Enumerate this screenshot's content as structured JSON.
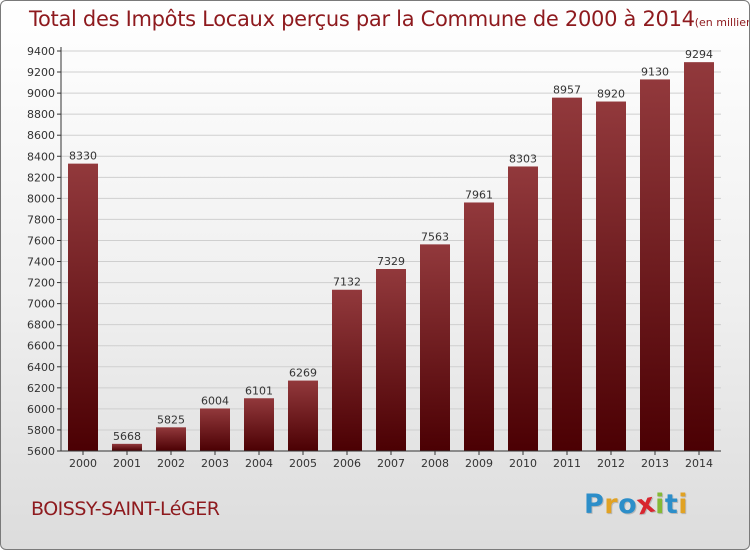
{
  "header": {
    "title": "Total des Impôts Locaux perçus par la Commune de 2000 à 2014",
    "unit": "(en milliers d'€)"
  },
  "footer": {
    "commune": "BOISSY-SAINT-LéGER"
  },
  "brand": {
    "letters": [
      {
        "char": "P",
        "color": "#2c8ec9"
      },
      {
        "char": "r",
        "color": "#e1a223"
      },
      {
        "char": "o",
        "color": "#2c8ec9"
      },
      {
        "char": "x",
        "color": "#d8262f"
      },
      {
        "char": "i",
        "color": "#85b935"
      },
      {
        "char": "t",
        "color": "#2c8ec9"
      },
      {
        "char": "i",
        "color": "#e1a223"
      }
    ]
  },
  "colors": {
    "title": "#8e1a1e",
    "bar_light": "#92393c",
    "bar_dark": "#4b0003",
    "grid": "#cfcfcf",
    "axis": "#333333"
  },
  "chart_data": {
    "type": "bar",
    "title": "Total des Impôts Locaux perçus par la Commune de 2000 à 2014",
    "xlabel": "",
    "ylabel": "(en milliers d'€)",
    "ylim": [
      5600,
      9400
    ],
    "ytick_step": 200,
    "grid": true,
    "categories": [
      "2000",
      "2001",
      "2002",
      "2003",
      "2004",
      "2005",
      "2006",
      "2007",
      "2008",
      "2009",
      "2010",
      "2011",
      "2012",
      "2013",
      "2014"
    ],
    "values": [
      8330,
      5668,
      5825,
      6004,
      6101,
      6269,
      7132,
      7329,
      7563,
      7961,
      8303,
      8957,
      8920,
      9130,
      9294
    ]
  }
}
